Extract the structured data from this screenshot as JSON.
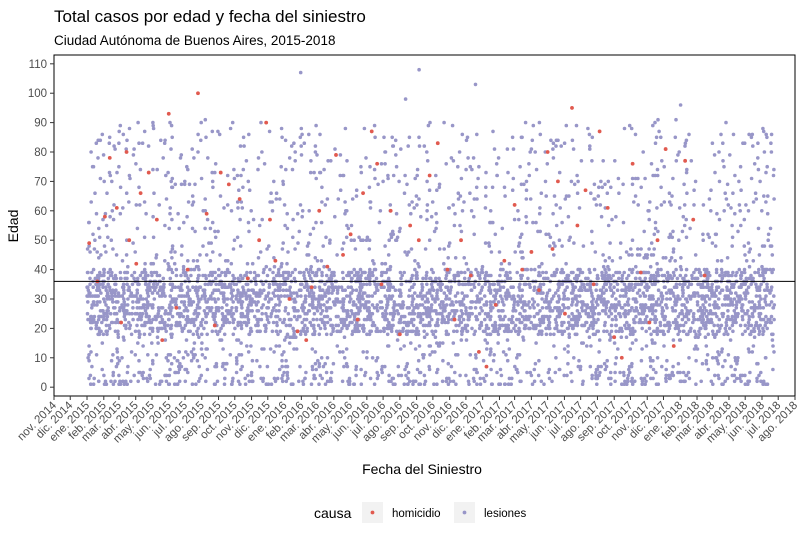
{
  "chart_data": {
    "type": "scatter",
    "title": "Total casos por edad y fecha del siniestro",
    "subtitle": "Ciudad Autónoma de Buenos Aires, 2015-2018",
    "xlabel": "Fecha del Siniestro",
    "ylabel": "Edad",
    "x_axis": {
      "type": "date",
      "range": [
        "2014-11-01",
        "2018-08-01"
      ],
      "ticks": [
        {
          "date": "2014-11-01",
          "label": "nov. 2014"
        },
        {
          "date": "2014-12-01",
          "label": "dic. 2014"
        },
        {
          "date": "2015-01-01",
          "label": "ene. 2015"
        },
        {
          "date": "2015-02-01",
          "label": "feb. 2015"
        },
        {
          "date": "2015-03-01",
          "label": "mar. 2015"
        },
        {
          "date": "2015-04-01",
          "label": "abr. 2015"
        },
        {
          "date": "2015-05-01",
          "label": "may. 2015"
        },
        {
          "date": "2015-06-01",
          "label": "jun. 2015"
        },
        {
          "date": "2015-07-01",
          "label": "jul. 2015"
        },
        {
          "date": "2015-08-01",
          "label": "ago. 2015"
        },
        {
          "date": "2015-09-01",
          "label": "sep. 2015"
        },
        {
          "date": "2015-10-01",
          "label": "oct. 2015"
        },
        {
          "date": "2015-11-01",
          "label": "nov. 2015"
        },
        {
          "date": "2015-12-01",
          "label": "dic. 2015"
        },
        {
          "date": "2016-01-01",
          "label": "ene. 2016"
        },
        {
          "date": "2016-02-01",
          "label": "feb. 2016"
        },
        {
          "date": "2016-03-01",
          "label": "mar. 2016"
        },
        {
          "date": "2016-04-01",
          "label": "abr. 2016"
        },
        {
          "date": "2016-05-01",
          "label": "may. 2016"
        },
        {
          "date": "2016-06-01",
          "label": "jun. 2016"
        },
        {
          "date": "2016-07-01",
          "label": "jul. 2016"
        },
        {
          "date": "2016-08-01",
          "label": "ago. 2016"
        },
        {
          "date": "2016-09-01",
          "label": "sep. 2016"
        },
        {
          "date": "2016-10-01",
          "label": "oct. 2016"
        },
        {
          "date": "2016-11-01",
          "label": "nov. 2016"
        },
        {
          "date": "2016-12-01",
          "label": "dic. 2016"
        },
        {
          "date": "2017-01-01",
          "label": "ene. 2017"
        },
        {
          "date": "2017-02-01",
          "label": "feb. 2017"
        },
        {
          "date": "2017-03-01",
          "label": "mar. 2017"
        },
        {
          "date": "2017-04-01",
          "label": "abr. 2017"
        },
        {
          "date": "2017-05-01",
          "label": "may. 2017"
        },
        {
          "date": "2017-06-01",
          "label": "jun. 2017"
        },
        {
          "date": "2017-07-01",
          "label": "jul. 2017"
        },
        {
          "date": "2017-08-01",
          "label": "ago. 2017"
        },
        {
          "date": "2017-09-01",
          "label": "sep. 2017"
        },
        {
          "date": "2017-10-01",
          "label": "oct. 2017"
        },
        {
          "date": "2017-11-01",
          "label": "nov. 2017"
        },
        {
          "date": "2017-12-01",
          "label": "dic. 2017"
        },
        {
          "date": "2018-01-01",
          "label": "ene. 2018"
        },
        {
          "date": "2018-02-01",
          "label": "feb. 2018"
        },
        {
          "date": "2018-03-01",
          "label": "mar. 2018"
        },
        {
          "date": "2018-04-01",
          "label": "abr. 2018"
        },
        {
          "date": "2018-05-01",
          "label": "may. 2018"
        },
        {
          "date": "2018-06-01",
          "label": "jun. 2018"
        },
        {
          "date": "2018-07-01",
          "label": "jul. 2018"
        },
        {
          "date": "2018-08-01",
          "label": "ago. 2018"
        }
      ]
    },
    "y_axis": {
      "range": [
        -3,
        113
      ],
      "ticks": [
        0,
        10,
        20,
        30,
        40,
        50,
        60,
        70,
        80,
        90,
        100,
        110
      ]
    },
    "grid": false,
    "reference_line": {
      "y": 36
    },
    "legend": {
      "position": "bottom",
      "title": "causa",
      "entries": [
        {
          "label": "homicidio",
          "color": "#e15a4f"
        },
        {
          "label": "lesiones",
          "color": "#9896c8"
        }
      ]
    },
    "series": [
      {
        "name": "homicidio",
        "color": "#e15a4f",
        "points": [
          [
            "2015-01-05",
            49
          ],
          [
            "2015-01-20",
            36
          ],
          [
            "2015-02-03",
            58
          ],
          [
            "2015-02-12",
            78
          ],
          [
            "2015-02-25",
            61
          ],
          [
            "2015-03-05",
            22
          ],
          [
            "2015-03-15",
            80
          ],
          [
            "2015-03-20",
            50
          ],
          [
            "2015-04-02",
            42
          ],
          [
            "2015-04-10",
            66
          ],
          [
            "2015-04-25",
            73
          ],
          [
            "2015-05-10",
            57
          ],
          [
            "2015-05-20",
            16
          ],
          [
            "2015-06-01",
            93
          ],
          [
            "2015-06-15",
            27
          ],
          [
            "2015-07-06",
            40
          ],
          [
            "2015-07-25",
            100
          ],
          [
            "2015-08-10",
            59
          ],
          [
            "2015-08-25",
            21
          ],
          [
            "2015-09-05",
            73
          ],
          [
            "2015-09-20",
            69
          ],
          [
            "2015-10-10",
            64
          ],
          [
            "2015-10-25",
            37
          ],
          [
            "2015-11-15",
            50
          ],
          [
            "2015-11-28",
            90
          ],
          [
            "2015-12-05",
            57
          ],
          [
            "2015-12-15",
            43
          ],
          [
            "2016-01-10",
            30
          ],
          [
            "2016-01-25",
            19
          ],
          [
            "2016-02-10",
            16
          ],
          [
            "2016-02-20",
            34
          ],
          [
            "2016-03-05",
            60
          ],
          [
            "2016-03-20",
            41
          ],
          [
            "2016-04-05",
            79
          ],
          [
            "2016-04-18",
            45
          ],
          [
            "2016-05-02",
            52
          ],
          [
            "2016-05-15",
            23
          ],
          [
            "2016-05-25",
            66
          ],
          [
            "2016-06-10",
            87
          ],
          [
            "2016-06-20",
            76
          ],
          [
            "2016-06-28",
            35
          ],
          [
            "2016-07-15",
            60
          ],
          [
            "2016-08-01",
            18
          ],
          [
            "2016-08-20",
            55
          ],
          [
            "2016-09-05",
            50
          ],
          [
            "2016-09-25",
            72
          ],
          [
            "2016-10-10",
            83
          ],
          [
            "2016-10-28",
            40
          ],
          [
            "2016-11-10",
            23
          ],
          [
            "2016-11-22",
            50
          ],
          [
            "2016-12-10",
            38
          ],
          [
            "2016-12-25",
            12
          ],
          [
            "2017-01-08",
            7
          ],
          [
            "2017-01-25",
            28
          ],
          [
            "2017-02-10",
            43
          ],
          [
            "2017-03-01",
            62
          ],
          [
            "2017-03-15",
            40
          ],
          [
            "2017-04-01",
            46
          ],
          [
            "2017-04-15",
            33
          ],
          [
            "2017-05-01",
            80
          ],
          [
            "2017-05-10",
            47
          ],
          [
            "2017-05-20",
            70
          ],
          [
            "2017-06-02",
            25
          ],
          [
            "2017-06-15",
            95
          ],
          [
            "2017-06-25",
            55
          ],
          [
            "2017-07-10",
            67
          ],
          [
            "2017-07-25",
            35
          ],
          [
            "2017-08-05",
            87
          ],
          [
            "2017-08-20",
            61
          ],
          [
            "2017-09-01",
            17
          ],
          [
            "2017-09-15",
            10
          ],
          [
            "2017-10-05",
            76
          ],
          [
            "2017-10-20",
            39
          ],
          [
            "2017-11-05",
            22
          ],
          [
            "2017-11-20",
            50
          ],
          [
            "2017-12-05",
            81
          ],
          [
            "2017-12-20",
            14
          ],
          [
            "2018-01-10",
            77
          ],
          [
            "2018-01-25",
            57
          ],
          [
            "2018-02-15",
            38
          ]
        ]
      },
      {
        "name": "lesiones",
        "color": "#9896c8",
        "x_range": [
          "2015-01-01",
          "2018-06-24"
        ],
        "core_age_range": [
          18,
          40
        ],
        "age_range": [
          1,
          108
        ],
        "n_points": 8500
      }
    ]
  }
}
